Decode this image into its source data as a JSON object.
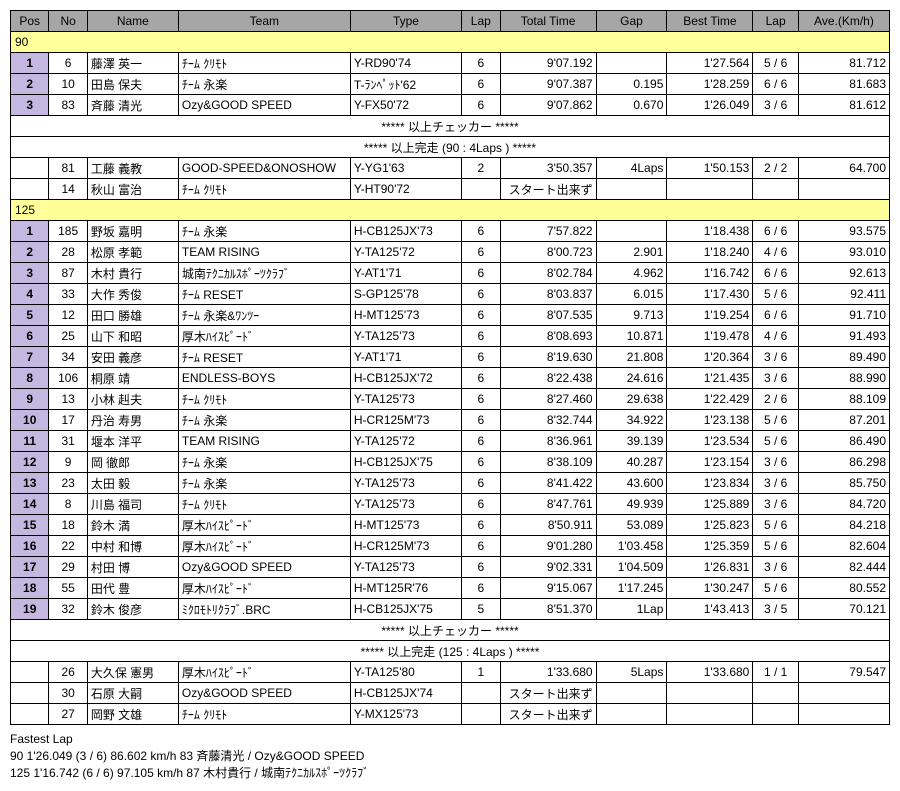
{
  "columns": [
    "Pos",
    "No",
    "Name",
    "Team",
    "Type",
    "Lap",
    "Total Time",
    "Gap",
    "Best Time",
    "Lap",
    "Ave.(Km/h)"
  ],
  "class90": {
    "label": "90",
    "rows": [
      {
        "pos": "1",
        "no": "6",
        "name": "藤澤 英一",
        "team": "ﾁｰﾑ ｸﾘﾓﾄ",
        "type": "Y-RD90'74",
        "lap": "6",
        "tot": "9'07.192",
        "gap": "",
        "best": "1'27.564",
        "lap2": "5 / 6",
        "ave": "81.712"
      },
      {
        "pos": "2",
        "no": "10",
        "name": "田島 保夫",
        "team": "ﾁｰﾑ 永楽",
        "type": "T-ﾗﾝﾍﾟｯﾄ'62",
        "lap": "6",
        "tot": "9'07.387",
        "gap": "0.195",
        "best": "1'28.259",
        "lap2": "6 / 6",
        "ave": "81.683"
      },
      {
        "pos": "3",
        "no": "83",
        "name": "斉藤 清光",
        "team": "Ozy&GOOD SPEED",
        "type": "Y-FX50'72",
        "lap": "6",
        "tot": "9'07.862",
        "gap": "0.670",
        "best": "1'26.049",
        "lap2": "3 / 6",
        "ave": "81.612"
      }
    ],
    "banner1": "***** 以上チェッカー *****",
    "banner2": "***** 以上完走 (90 : 4Laps ) *****",
    "extras": [
      {
        "pos": "",
        "no": "81",
        "name": "工藤 義教",
        "team": "GOOD-SPEED&ONOSHOW",
        "type": "Y-YG1'63",
        "lap": "2",
        "tot": "3'50.357",
        "gap": "4Laps",
        "best": "1'50.153",
        "lap2": "2 / 2",
        "ave": "64.700"
      },
      {
        "pos": "",
        "no": "14",
        "name": "秋山 富治",
        "team": "ﾁｰﾑ ｸﾘﾓﾄ",
        "type": "Y-HT90'72",
        "lap": "",
        "tot": "スタート出来ず",
        "gap": "",
        "best": "",
        "lap2": "",
        "ave": ""
      }
    ]
  },
  "class125": {
    "label": "125",
    "rows": [
      {
        "pos": "1",
        "no": "185",
        "name": "野坂 嘉明",
        "team": "ﾁｰﾑ 永楽",
        "type": "H-CB125JX'73",
        "lap": "6",
        "tot": "7'57.822",
        "gap": "",
        "best": "1'18.438",
        "lap2": "6 / 6",
        "ave": "93.575"
      },
      {
        "pos": "2",
        "no": "28",
        "name": "松原 孝範",
        "team": "TEAM RISING",
        "type": "Y-TA125'72",
        "lap": "6",
        "tot": "8'00.723",
        "gap": "2.901",
        "best": "1'18.240",
        "lap2": "4 / 6",
        "ave": "93.010"
      },
      {
        "pos": "3",
        "no": "87",
        "name": "木村 貴行",
        "team": "城南ﾃｸﾆｶﾙｽﾎﾟｰﾂｸﾗﾌﾞ",
        "type": "Y-AT1'71",
        "lap": "6",
        "tot": "8'02.784",
        "gap": "4.962",
        "best": "1'16.742",
        "lap2": "6 / 6",
        "ave": "92.613"
      },
      {
        "pos": "4",
        "no": "33",
        "name": "大作 秀俊",
        "team": "ﾁｰﾑ RESET",
        "type": "S-GP125'78",
        "lap": "6",
        "tot": "8'03.837",
        "gap": "6.015",
        "best": "1'17.430",
        "lap2": "5 / 6",
        "ave": "92.411"
      },
      {
        "pos": "5",
        "no": "12",
        "name": "田口 勝雄",
        "team": "ﾁｰﾑ 永楽&ﾜﾝﾂｰ",
        "type": "H-MT125'73",
        "lap": "6",
        "tot": "8'07.535",
        "gap": "9.713",
        "best": "1'19.254",
        "lap2": "6 / 6",
        "ave": "91.710"
      },
      {
        "pos": "6",
        "no": "25",
        "name": "山下 和昭",
        "team": "厚木ﾊｲｽﾋﾟｰﾄﾞ",
        "type": "Y-TA125'73",
        "lap": "6",
        "tot": "8'08.693",
        "gap": "10.871",
        "best": "1'19.478",
        "lap2": "4 / 6",
        "ave": "91.493"
      },
      {
        "pos": "7",
        "no": "34",
        "name": "安田 義彦",
        "team": "ﾁｰﾑ RESET",
        "type": "Y-AT1'71",
        "lap": "6",
        "tot": "8'19.630",
        "gap": "21.808",
        "best": "1'20.364",
        "lap2": "3 / 6",
        "ave": "89.490"
      },
      {
        "pos": "8",
        "no": "106",
        "name": "桐原 靖",
        "team": "ENDLESS-BOYS",
        "type": "H-CB125JX'72",
        "lap": "6",
        "tot": "8'22.438",
        "gap": "24.616",
        "best": "1'21.435",
        "lap2": "3 / 6",
        "ave": "88.990"
      },
      {
        "pos": "9",
        "no": "13",
        "name": "小林 赳夫",
        "team": "ﾁｰﾑ ｸﾘﾓﾄ",
        "type": "Y-TA125'73",
        "lap": "6",
        "tot": "8'27.460",
        "gap": "29.638",
        "best": "1'22.429",
        "lap2": "2 / 6",
        "ave": "88.109"
      },
      {
        "pos": "10",
        "no": "17",
        "name": "丹治 寿男",
        "team": "ﾁｰﾑ 永楽",
        "type": "H-CR125M'73",
        "lap": "6",
        "tot": "8'32.744",
        "gap": "34.922",
        "best": "1'23.138",
        "lap2": "5 / 6",
        "ave": "87.201"
      },
      {
        "pos": "11",
        "no": "31",
        "name": "堰本 洋平",
        "team": "TEAM RISING",
        "type": "Y-TA125'72",
        "lap": "6",
        "tot": "8'36.961",
        "gap": "39.139",
        "best": "1'23.534",
        "lap2": "5 / 6",
        "ave": "86.490"
      },
      {
        "pos": "12",
        "no": "9",
        "name": "岡 徹郎",
        "team": "ﾁｰﾑ 永楽",
        "type": "H-CB125JX'75",
        "lap": "6",
        "tot": "8'38.109",
        "gap": "40.287",
        "best": "1'23.154",
        "lap2": "3 / 6",
        "ave": "86.298"
      },
      {
        "pos": "13",
        "no": "23",
        "name": "太田 毅",
        "team": "ﾁｰﾑ 永楽",
        "type": "Y-TA125'73",
        "lap": "6",
        "tot": "8'41.422",
        "gap": "43.600",
        "best": "1'23.834",
        "lap2": "3 / 6",
        "ave": "85.750"
      },
      {
        "pos": "14",
        "no": "8",
        "name": "川島 福司",
        "team": "ﾁｰﾑ ｸﾘﾓﾄ",
        "type": "Y-TA125'73",
        "lap": "6",
        "tot": "8'47.761",
        "gap": "49.939",
        "best": "1'25.889",
        "lap2": "3 / 6",
        "ave": "84.720"
      },
      {
        "pos": "15",
        "no": "18",
        "name": "鈴木 満",
        "team": "厚木ﾊｲｽﾋﾟｰﾄﾞ",
        "type": "H-MT125'73",
        "lap": "6",
        "tot": "8'50.911",
        "gap": "53.089",
        "best": "1'25.823",
        "lap2": "5 / 6",
        "ave": "84.218"
      },
      {
        "pos": "16",
        "no": "22",
        "name": "中村 和博",
        "team": "厚木ﾊｲｽﾋﾟｰﾄﾞ",
        "type": "H-CR125M'73",
        "lap": "6",
        "tot": "9'01.280",
        "gap": "1'03.458",
        "best": "1'25.359",
        "lap2": "5 / 6",
        "ave": "82.604"
      },
      {
        "pos": "17",
        "no": "29",
        "name": "村田 博",
        "team": "Ozy&GOOD SPEED",
        "type": "Y-TA125'73",
        "lap": "6",
        "tot": "9'02.331",
        "gap": "1'04.509",
        "best": "1'26.831",
        "lap2": "3 / 6",
        "ave": "82.444"
      },
      {
        "pos": "18",
        "no": "55",
        "name": "田代 豊",
        "team": "厚木ﾊｲｽﾋﾟｰﾄﾞ",
        "type": "H-MT125R'76",
        "lap": "6",
        "tot": "9'15.067",
        "gap": "1'17.245",
        "best": "1'30.247",
        "lap2": "5 / 6",
        "ave": "80.552"
      },
      {
        "pos": "19",
        "no": "32",
        "name": "鈴木 俊彦",
        "team": "ﾐｸﾛﾓﾄﾘｸﾗﾌﾞ.BRC",
        "type": "H-CB125JX'75",
        "lap": "5",
        "tot": "8'51.370",
        "gap": "1Lap",
        "best": "1'43.413",
        "lap2": "3 / 5",
        "ave": "70.121"
      }
    ],
    "banner1": "***** 以上チェッカー *****",
    "banner2": "***** 以上完走 (125 : 4Laps ) *****",
    "extras": [
      {
        "pos": "",
        "no": "26",
        "name": "大久保 憲男",
        "team": "厚木ﾊｲｽﾋﾟｰﾄﾞ",
        "type": "Y-TA125'80",
        "lap": "1",
        "tot": "1'33.680",
        "gap": "5Laps",
        "best": "1'33.680",
        "lap2": "1 / 1",
        "ave": "79.547"
      },
      {
        "pos": "",
        "no": "30",
        "name": "石原 大嗣",
        "team": "Ozy&GOOD SPEED",
        "type": "H-CB125JX'74",
        "lap": "",
        "tot": "スタート出来ず",
        "gap": "",
        "best": "",
        "lap2": "",
        "ave": ""
      },
      {
        "pos": "",
        "no": "27",
        "name": "岡野 文雄",
        "team": "ﾁｰﾑ ｸﾘﾓﾄ",
        "type": "Y-MX125'73",
        "lap": "",
        "tot": "スタート出来ず",
        "gap": "",
        "best": "",
        "lap2": "",
        "ave": ""
      }
    ]
  },
  "footer": {
    "title": "Fastest Lap",
    "line1": "90 1'26.049 (3 / 6) 86.602 km/h 83 斉藤清光 / Ozy&GOOD SPEED",
    "line2": "125 1'16.742 (6 / 6) 97.105 km/h 87 木村貴行 / 城南ﾃｸﾆｶﾙｽﾎﾟｰﾂｸﾗﾌﾞ"
  }
}
